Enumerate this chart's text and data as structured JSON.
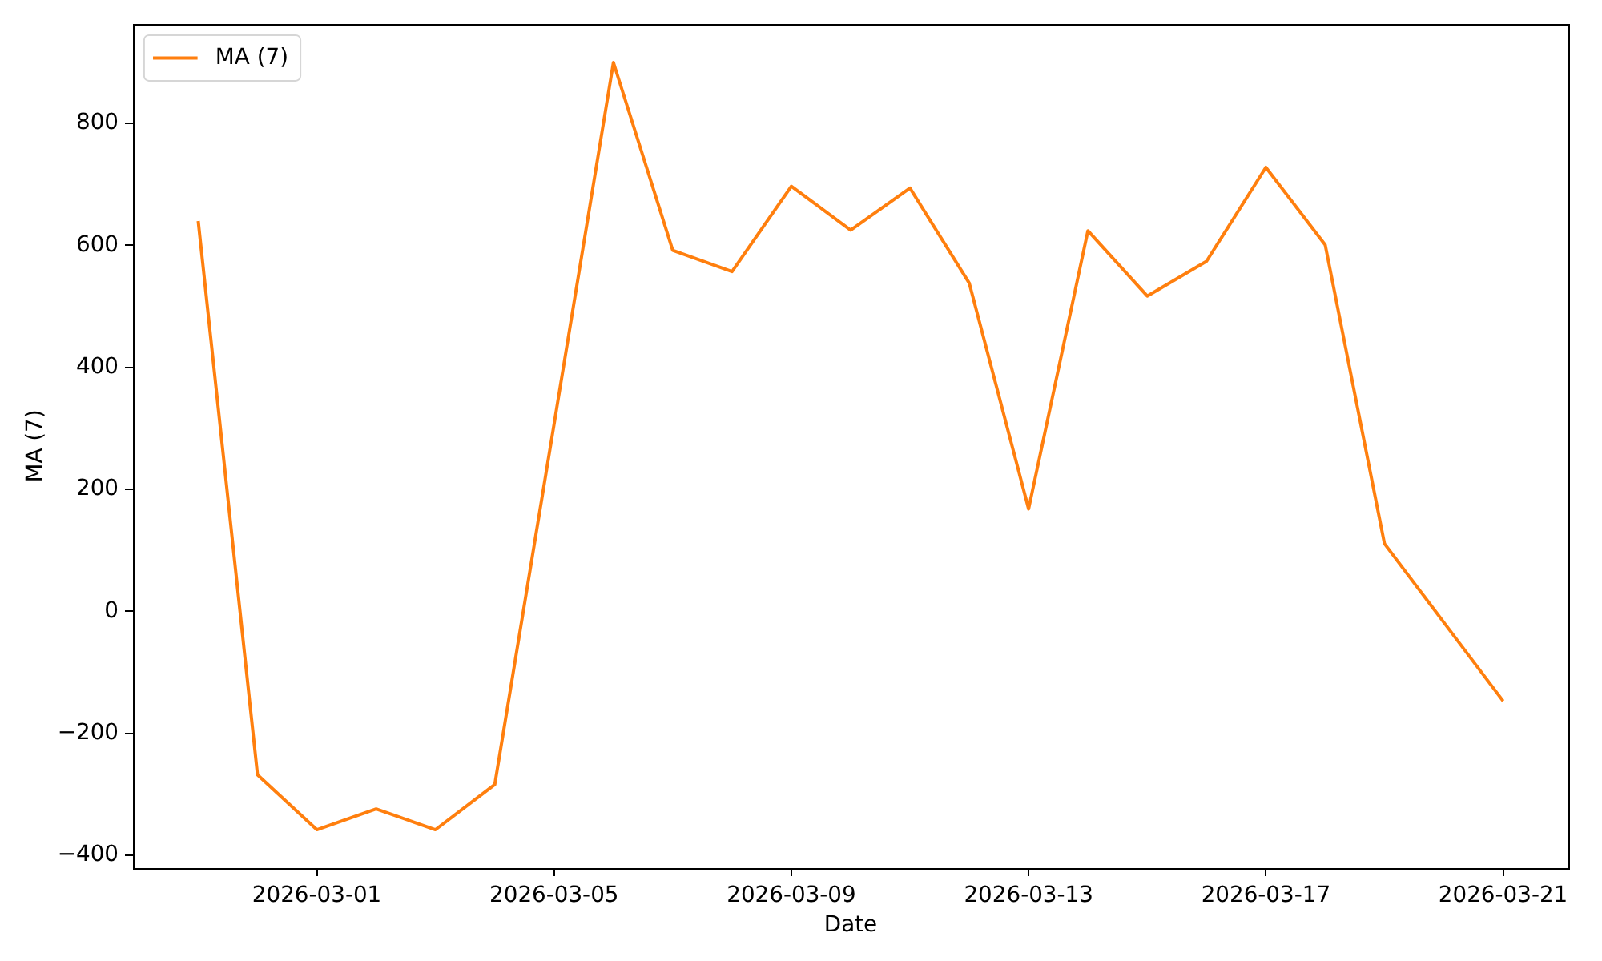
{
  "chart_data": {
    "type": "line",
    "xlabel": "Date",
    "ylabel": "MA (7)",
    "x": [
      "2026-02-27",
      "2026-02-28",
      "2026-03-01",
      "2026-03-02",
      "2026-03-03",
      "2026-03-04",
      "2026-03-05",
      "2026-03-06",
      "2026-03-07",
      "2026-03-08",
      "2026-03-09",
      "2026-03-10",
      "2026-03-11",
      "2026-03-12",
      "2026-03-13",
      "2026-03-14",
      "2026-03-15",
      "2026-03-16",
      "2026-03-17",
      "2026-03-18",
      "2026-03-19",
      "2026-03-20",
      "2026-03-21"
    ],
    "series": [
      {
        "name": "MA (7)",
        "color": "#ff7f0e",
        "values": [
          640,
          -268,
          -358,
          -324,
          -358,
          -284,
          307,
          900,
          592,
          557,
          697,
          625,
          694,
          538,
          168,
          624,
          517,
          574,
          728,
          601,
          111,
          -18,
          -147
        ]
      }
    ],
    "xlim": [
      "2026-02-25T21:36",
      "2026-03-22T02:24"
    ],
    "xticks": [
      "2026-03-01",
      "2026-03-05",
      "2026-03-09",
      "2026-03-13",
      "2026-03-17",
      "2026-03-21"
    ],
    "ylim": [
      -421,
      963
    ],
    "yticks": [
      -400,
      -200,
      0,
      200,
      400,
      600,
      800
    ],
    "legend": "top left"
  }
}
